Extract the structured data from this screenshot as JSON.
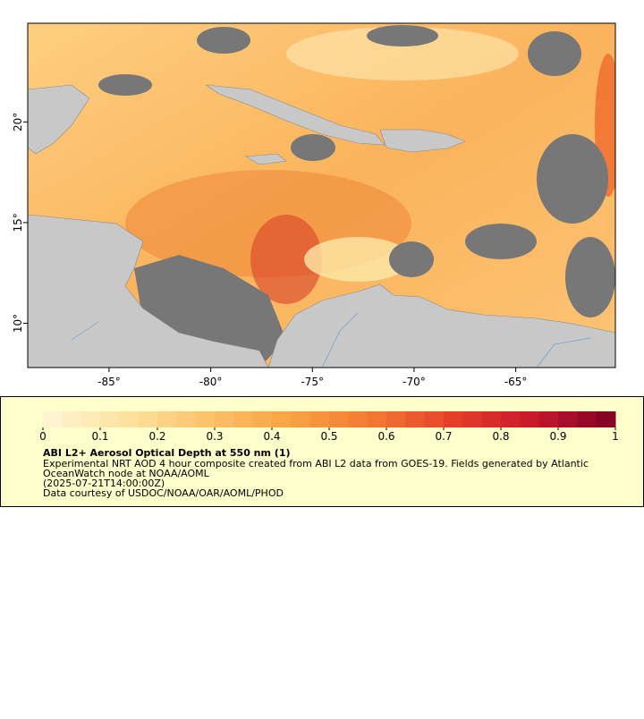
{
  "map": {
    "xlim": [
      -89,
      -60.1
    ],
    "ylim": [
      7.8,
      24.9
    ],
    "xticks": [
      {
        "value": -85,
        "label": "-85°"
      },
      {
        "value": -80,
        "label": "-80°"
      },
      {
        "value": -75,
        "label": "-75°"
      },
      {
        "value": -70,
        "label": "-70°"
      },
      {
        "value": -65,
        "label": "-65°"
      }
    ],
    "yticks": [
      {
        "value": 10,
        "label": "10°"
      },
      {
        "value": 15,
        "label": "15°"
      },
      {
        "value": 20,
        "label": "20°"
      }
    ]
  },
  "colorbar": {
    "lim": [
      0,
      1
    ],
    "ticks": [
      0,
      0.1,
      0.2,
      0.3,
      0.4,
      0.5,
      0.6,
      0.7,
      0.8,
      0.9,
      1
    ],
    "segments": 30,
    "colors": [
      "#fff6d5",
      "#fde3a0",
      "#fcc26a",
      "#f9a343",
      "#f37a32",
      "#e5402a",
      "#c7182b",
      "#7d0025"
    ]
  },
  "legend": {
    "title": "ABI L2+ Aerosol Optical Depth at 550 nm (1)",
    "summary_lines": [
      "Experimental NRT AOD 4 hour composite created from ABI L2 data from GOES-19. Fields generated by Atlantic",
      "OceanWatch node at NOAA/AOML"
    ],
    "time": "(2025-07-21T14:00:00Z)",
    "credit": "Data courtesy of USDOC/NOAA/OAR/AOML/PHOD"
  }
}
